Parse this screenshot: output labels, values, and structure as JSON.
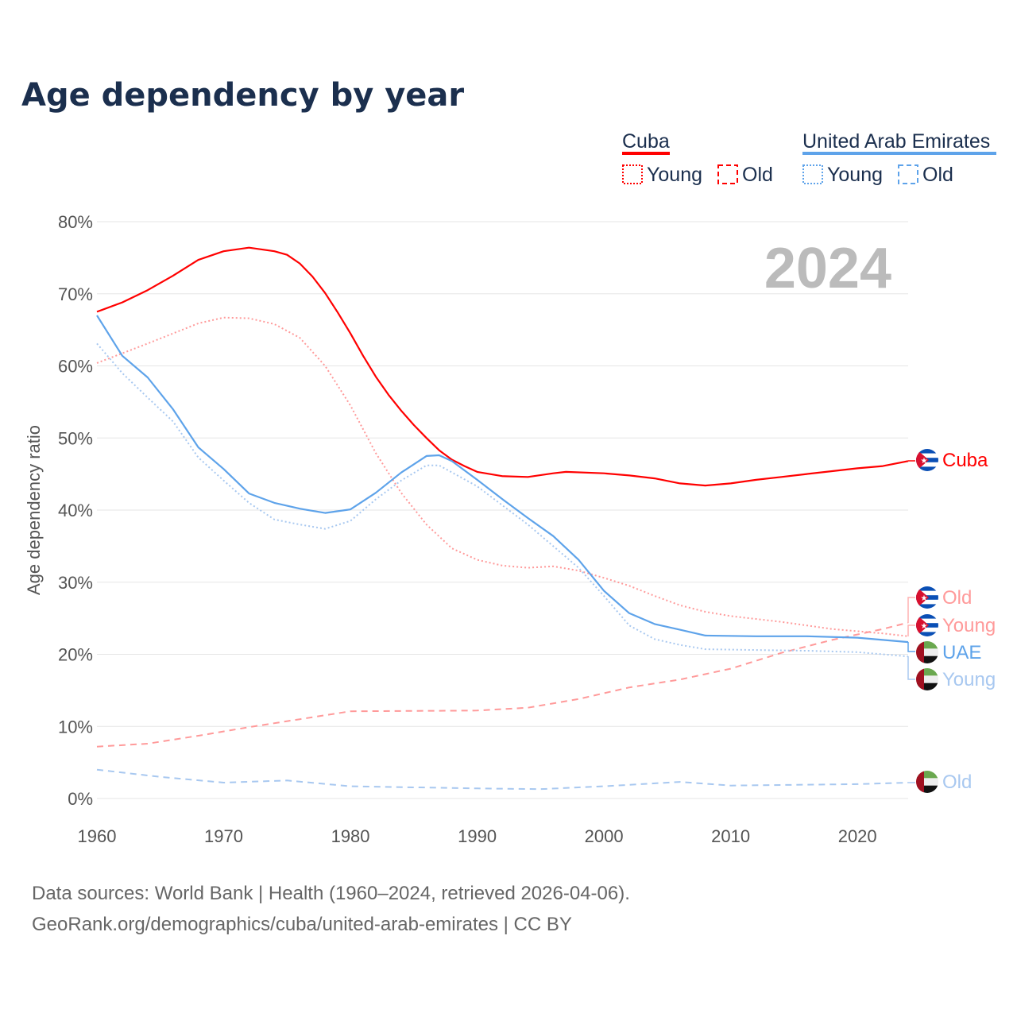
{
  "title": "Age dependency by year",
  "year_watermark": "2024",
  "legend": {
    "groups": [
      {
        "name": "Cuba",
        "color": "#ff0000",
        "items": [
          "Young",
          "Old"
        ]
      },
      {
        "name": "United Arab Emirates",
        "color": "#5ea3ea",
        "items": [
          "Young",
          "Old"
        ]
      }
    ]
  },
  "footer": {
    "line1": "Data sources: World Bank | Health (1960–2024, retrieved 2026-04-06).",
    "line2": "GeoRank.org/demographics/cuba/united-arab-emirates | CC BY"
  },
  "end_labels": {
    "cuba": "Cuba",
    "cuba_old": "Old",
    "cuba_young": "Young",
    "uae": "UAE",
    "uae_young": "Young",
    "uae_old": "Old"
  },
  "chart_data": {
    "type": "line",
    "title": "Age dependency by year",
    "xlabel": "",
    "ylabel": "Age dependency ratio",
    "xlim": [
      1960,
      2024
    ],
    "ylim": [
      0,
      80
    ],
    "xticks": [
      "1960",
      "1970",
      "1980",
      "1990",
      "2000",
      "2010",
      "2020"
    ],
    "yticks": [
      "0%",
      "10%",
      "20%",
      "30%",
      "40%",
      "50%",
      "60%",
      "70%",
      "80%"
    ],
    "grid": true,
    "legend_position": "top-right",
    "series": [
      {
        "name": "Cuba",
        "style": "solid",
        "color": "#ff0000",
        "points": [
          [
            1960,
            67.5
          ],
          [
            1962,
            68.8
          ],
          [
            1964,
            70.5
          ],
          [
            1966,
            72.5
          ],
          [
            1968,
            74.7
          ],
          [
            1970,
            75.9
          ],
          [
            1972,
            76.4
          ],
          [
            1974,
            75.9
          ],
          [
            1975,
            75.4
          ],
          [
            1976,
            74.2
          ],
          [
            1977,
            72.4
          ],
          [
            1978,
            70.1
          ],
          [
            1979,
            67.4
          ],
          [
            1980,
            64.5
          ],
          [
            1981,
            61.4
          ],
          [
            1982,
            58.5
          ],
          [
            1983,
            56
          ],
          [
            1984,
            53.8
          ],
          [
            1985,
            51.8
          ],
          [
            1986,
            50
          ],
          [
            1987,
            48.3
          ],
          [
            1988,
            47
          ],
          [
            1989,
            46.1
          ],
          [
            1990,
            45.3
          ],
          [
            1992,
            44.7
          ],
          [
            1994,
            44.6
          ],
          [
            1996,
            45.1
          ],
          [
            1997,
            45.3
          ],
          [
            2000,
            45.1
          ],
          [
            2002,
            44.8
          ],
          [
            2004,
            44.4
          ],
          [
            2006,
            43.7
          ],
          [
            2008,
            43.4
          ],
          [
            2010,
            43.7
          ],
          [
            2012,
            44.2
          ],
          [
            2014,
            44.6
          ],
          [
            2016,
            45
          ],
          [
            2018,
            45.4
          ],
          [
            2020,
            45.8
          ],
          [
            2022,
            46.1
          ],
          [
            2024,
            46.8
          ]
        ]
      },
      {
        "name": "Cuba Young",
        "style": "dotted",
        "color": "#ff9a9a",
        "points": [
          [
            1960,
            60.4
          ],
          [
            1964,
            63.1
          ],
          [
            1968,
            65.9
          ],
          [
            1970,
            66.7
          ],
          [
            1972,
            66.6
          ],
          [
            1974,
            65.8
          ],
          [
            1976,
            63.9
          ],
          [
            1978,
            60
          ],
          [
            1980,
            54.5
          ],
          [
            1982,
            47.9
          ],
          [
            1984,
            42.4
          ],
          [
            1986,
            38
          ],
          [
            1988,
            34.7
          ],
          [
            1990,
            33.1
          ],
          [
            1992,
            32.3
          ],
          [
            1994,
            32
          ],
          [
            1996,
            32.2
          ],
          [
            1998,
            31.6
          ],
          [
            2000,
            30.6
          ],
          [
            2002,
            29.5
          ],
          [
            2004,
            28.1
          ],
          [
            2006,
            26.8
          ],
          [
            2008,
            25.9
          ],
          [
            2010,
            25.3
          ],
          [
            2014,
            24.5
          ],
          [
            2018,
            23.5
          ],
          [
            2022,
            22.9
          ],
          [
            2024,
            22.5
          ]
        ]
      },
      {
        "name": "Cuba Old",
        "style": "dashed",
        "color": "#ff9a9a",
        "points": [
          [
            1960,
            7.2
          ],
          [
            1964,
            7.6
          ],
          [
            1968,
            8.7
          ],
          [
            1972,
            9.9
          ],
          [
            1976,
            11
          ],
          [
            1980,
            12.1
          ],
          [
            1990,
            12.2
          ],
          [
            1994,
            12.6
          ],
          [
            1998,
            13.8
          ],
          [
            2002,
            15.4
          ],
          [
            2006,
            16.5
          ],
          [
            2010,
            18
          ],
          [
            2014,
            20.2
          ],
          [
            2018,
            22
          ],
          [
            2022,
            23.5
          ],
          [
            2024,
            24.4
          ]
        ]
      },
      {
        "name": "UAE",
        "style": "solid",
        "color": "#5ea3ea",
        "points": [
          [
            1960,
            67
          ],
          [
            1962,
            61.4
          ],
          [
            1964,
            58.4
          ],
          [
            1966,
            54
          ],
          [
            1968,
            48.7
          ],
          [
            1970,
            45.7
          ],
          [
            1972,
            42.3
          ],
          [
            1974,
            41
          ],
          [
            1976,
            40.2
          ],
          [
            1978,
            39.6
          ],
          [
            1980,
            40.1
          ],
          [
            1982,
            42.4
          ],
          [
            1984,
            45.2
          ],
          [
            1986,
            47.5
          ],
          [
            1987,
            47.6
          ],
          [
            1988,
            46.8
          ],
          [
            1990,
            44.2
          ],
          [
            1992,
            41.5
          ],
          [
            1994,
            38.9
          ],
          [
            1996,
            36.4
          ],
          [
            1998,
            33.1
          ],
          [
            2000,
            28.8
          ],
          [
            2002,
            25.7
          ],
          [
            2004,
            24.2
          ],
          [
            2006,
            23.4
          ],
          [
            2008,
            22.6
          ],
          [
            2012,
            22.5
          ],
          [
            2016,
            22.5
          ],
          [
            2020,
            22.3
          ],
          [
            2024,
            21.7
          ]
        ]
      },
      {
        "name": "UAE Young",
        "style": "dotted",
        "color": "#a8c8f0",
        "points": [
          [
            1960,
            63.1
          ],
          [
            1962,
            59
          ],
          [
            1964,
            55.6
          ],
          [
            1966,
            52.3
          ],
          [
            1968,
            47.3
          ],
          [
            1970,
            44.1
          ],
          [
            1972,
            41
          ],
          [
            1974,
            38.7
          ],
          [
            1976,
            38
          ],
          [
            1978,
            37.4
          ],
          [
            1980,
            38.5
          ],
          [
            1982,
            41.5
          ],
          [
            1984,
            44.1
          ],
          [
            1986,
            46.2
          ],
          [
            1987,
            46.2
          ],
          [
            1990,
            43.3
          ],
          [
            1994,
            38
          ],
          [
            1998,
            32
          ],
          [
            2000,
            28.1
          ],
          [
            2002,
            24
          ],
          [
            2004,
            22.1
          ],
          [
            2006,
            21.3
          ],
          [
            2008,
            20.7
          ],
          [
            2012,
            20.6
          ],
          [
            2016,
            20.5
          ],
          [
            2020,
            20.3
          ],
          [
            2024,
            19.7
          ]
        ]
      },
      {
        "name": "UAE Old",
        "style": "dashed",
        "color": "#a8c8f0",
        "points": [
          [
            1960,
            4
          ],
          [
            1965,
            3
          ],
          [
            1970,
            2.2
          ],
          [
            1975,
            2.5
          ],
          [
            1980,
            1.7
          ],
          [
            1990,
            1.4
          ],
          [
            1995,
            1.3
          ],
          [
            2000,
            1.7
          ],
          [
            2006,
            2.3
          ],
          [
            2010,
            1.8
          ],
          [
            2020,
            2
          ],
          [
            2024,
            2.2
          ]
        ]
      }
    ]
  }
}
